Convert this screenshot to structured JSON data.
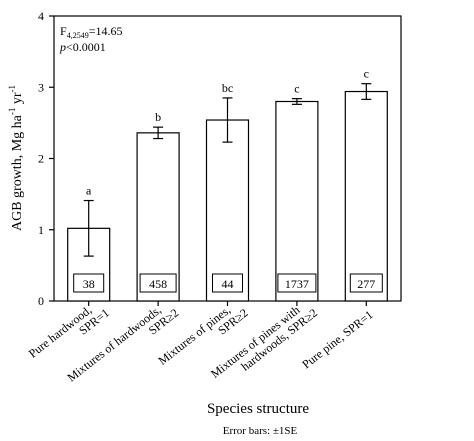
{
  "chart_data": {
    "type": "bar",
    "categories": [
      [
        "Pure hardwood,",
        "SPR=1"
      ],
      [
        "Mixtures of hardwoods,",
        "SPR≥2"
      ],
      [
        "Mixtures of pines,",
        "SPR≥2"
      ],
      [
        "Mixtures of pines with",
        "hardwoods, SPR≥2"
      ],
      [
        "Pure pine, SPR=1"
      ]
    ],
    "values": [
      1.02,
      2.36,
      2.54,
      2.8,
      2.94
    ],
    "se": [
      0.39,
      0.08,
      0.31,
      0.04,
      0.11
    ],
    "letters": [
      "a",
      "b",
      "bc",
      "c",
      "c"
    ],
    "n_labels": [
      "38",
      "458",
      "44",
      "1737",
      "277"
    ],
    "ylim": [
      0,
      4
    ],
    "yticks": [
      0,
      1,
      2,
      3,
      4
    ],
    "ylabel": "AGB growth, Mg ha-1 yr-1",
    "xlabel": "Species structure",
    "footnote": "Error bars: ±1SE",
    "stats": {
      "F_label": "F",
      "F_subscript": "4,2549",
      "F_value": "=14.65",
      "p_label": "p",
      "p_value": "<0.0001"
    }
  }
}
